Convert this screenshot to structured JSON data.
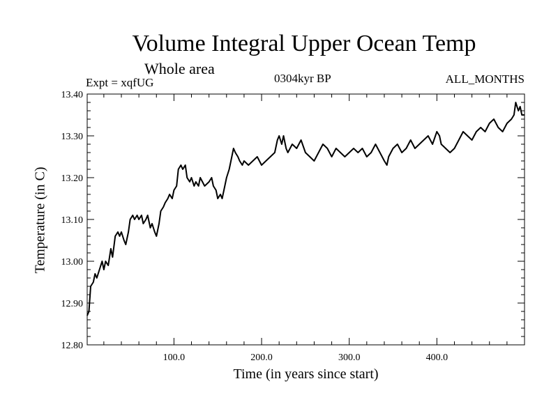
{
  "chart_data": {
    "type": "line",
    "title": "Volume Integral Upper Ocean Temp",
    "subtitle": "Whole area",
    "experiment": "Expt = xqfUG",
    "period": "0304kyr BP",
    "months": "ALL_MONTHS",
    "xlabel": "Time (in years since start)",
    "ylabel": "Temperature (in C)",
    "xlim": [
      1,
      500
    ],
    "ylim": [
      12.8,
      13.4
    ],
    "xticks": [
      100,
      200,
      300,
      400
    ],
    "xtick_labels": [
      "100.0",
      "200.0",
      "300.0",
      "400.0"
    ],
    "yticks": [
      12.8,
      12.9,
      13.0,
      13.1,
      13.2,
      13.3,
      13.4
    ],
    "ytick_labels": [
      "12.80",
      "12.90",
      "13.00",
      "13.10",
      "13.20",
      "13.30",
      "13.40"
    ],
    "grid": false,
    "series": [
      {
        "name": "Volume Integral Upper Ocean Temp",
        "x": [
          1,
          3,
          5,
          8,
          10,
          12,
          15,
          18,
          20,
          22,
          25,
          28,
          30,
          33,
          36,
          38,
          40,
          43,
          45,
          48,
          50,
          53,
          55,
          58,
          60,
          63,
          65,
          68,
          70,
          73,
          75,
          78,
          80,
          83,
          85,
          88,
          90,
          93,
          95,
          98,
          100,
          103,
          105,
          108,
          110,
          113,
          115,
          118,
          120,
          123,
          125,
          128,
          130,
          135,
          140,
          143,
          145,
          148,
          150,
          153,
          155,
          158,
          160,
          163,
          165,
          168,
          170,
          173,
          175,
          178,
          180,
          185,
          190,
          195,
          200,
          205,
          210,
          215,
          218,
          220,
          223,
          225,
          228,
          230,
          235,
          240,
          245,
          250,
          255,
          260,
          265,
          270,
          275,
          280,
          285,
          290,
          295,
          300,
          305,
          310,
          315,
          320,
          325,
          330,
          335,
          340,
          343,
          345,
          350,
          355,
          360,
          365,
          370,
          375,
          380,
          385,
          390,
          395,
          400,
          403,
          405,
          410,
          415,
          420,
          425,
          430,
          435,
          440,
          445,
          450,
          455,
          460,
          465,
          470,
          475,
          480,
          485,
          488,
          490,
          493,
          495,
          497,
          500
        ],
        "values": [
          12.87,
          12.88,
          12.94,
          12.95,
          12.97,
          12.96,
          12.98,
          13.0,
          12.98,
          13.0,
          12.99,
          13.03,
          13.01,
          13.06,
          13.07,
          13.06,
          13.07,
          13.05,
          13.04,
          13.07,
          13.1,
          13.11,
          13.1,
          13.11,
          13.1,
          13.11,
          13.09,
          13.1,
          13.11,
          13.08,
          13.09,
          13.07,
          13.06,
          13.09,
          13.12,
          13.13,
          13.14,
          13.15,
          13.16,
          13.15,
          13.17,
          13.18,
          13.22,
          13.23,
          13.22,
          13.23,
          13.2,
          13.19,
          13.2,
          13.18,
          13.19,
          13.18,
          13.2,
          13.18,
          13.19,
          13.2,
          13.18,
          13.17,
          13.15,
          13.16,
          13.15,
          13.18,
          13.2,
          13.22,
          13.24,
          13.27,
          13.26,
          13.25,
          13.24,
          13.23,
          13.24,
          13.23,
          13.24,
          13.25,
          13.23,
          13.24,
          13.25,
          13.26,
          13.29,
          13.3,
          13.28,
          13.3,
          13.27,
          13.26,
          13.28,
          13.27,
          13.29,
          13.26,
          13.25,
          13.24,
          13.26,
          13.28,
          13.27,
          13.25,
          13.27,
          13.26,
          13.25,
          13.26,
          13.27,
          13.26,
          13.27,
          13.25,
          13.26,
          13.28,
          13.26,
          13.24,
          13.23,
          13.25,
          13.27,
          13.28,
          13.26,
          13.27,
          13.29,
          13.27,
          13.28,
          13.29,
          13.3,
          13.28,
          13.31,
          13.3,
          13.28,
          13.27,
          13.26,
          13.27,
          13.29,
          13.31,
          13.3,
          13.29,
          13.31,
          13.32,
          13.31,
          13.33,
          13.34,
          13.32,
          13.31,
          13.33,
          13.34,
          13.35,
          13.38,
          13.36,
          13.37,
          13.35,
          13.35
        ]
      }
    ]
  }
}
